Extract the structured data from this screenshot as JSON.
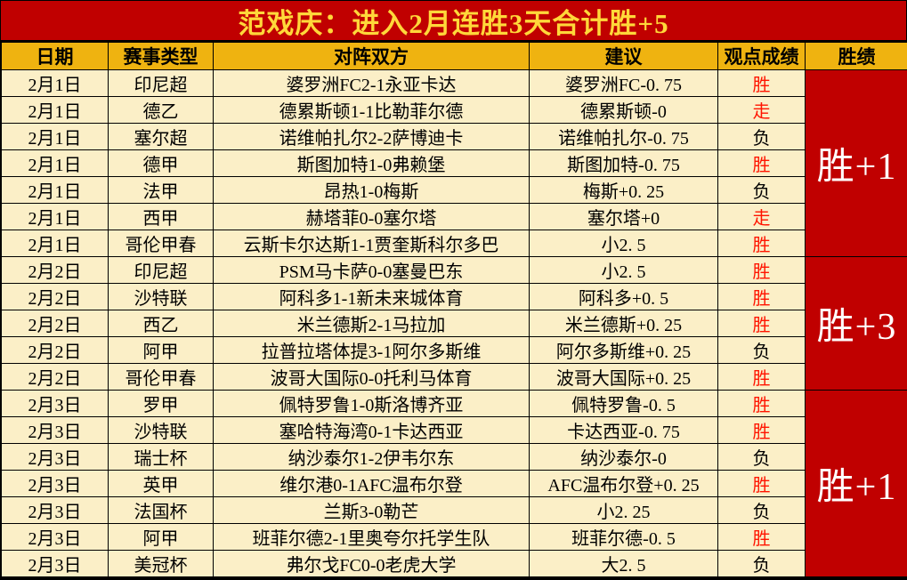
{
  "banner": {
    "title": "范戏庆：进入2月连胜3天合计胜+5"
  },
  "table": {
    "columns": [
      "日期",
      "赛事类型",
      "对阵双方",
      "建议",
      "观点成绩",
      "胜绩"
    ],
    "rows": [
      {
        "date": "2月1日",
        "league": "印尼超",
        "match": "婆罗洲FC2-1永亚卡达",
        "suggestion": "婆罗洲FC-0. 75",
        "result": "胜",
        "result_color": "red"
      },
      {
        "date": "2月1日",
        "league": "德乙",
        "match": "德累斯顿1-1比勒菲尔德",
        "suggestion": "德累斯顿-0",
        "result": "走",
        "result_color": "red"
      },
      {
        "date": "2月1日",
        "league": "塞尔超",
        "match": "诺维帕扎尔2-2萨博迪卡",
        "suggestion": "诺维帕扎尔-0. 75",
        "result": "负",
        "result_color": "black"
      },
      {
        "date": "2月1日",
        "league": "德甲",
        "match": "斯图加特1-0弗赖堡",
        "suggestion": "斯图加特-0. 75",
        "result": "胜",
        "result_color": "red"
      },
      {
        "date": "2月1日",
        "league": "法甲",
        "match": "昂热1-0梅斯",
        "suggestion": "梅斯+0. 25",
        "result": "负",
        "result_color": "black"
      },
      {
        "date": "2月1日",
        "league": "西甲",
        "match": "赫塔菲0-0塞尔塔",
        "suggestion": "塞尔塔+0",
        "result": "走",
        "result_color": "red"
      },
      {
        "date": "2月1日",
        "league": "哥伦甲春",
        "match": "云斯卡尔达斯1-1贾奎斯科尔多巴",
        "suggestion": "小2. 5",
        "result": "胜",
        "result_color": "red"
      },
      {
        "date": "2月2日",
        "league": "印尼超",
        "match": "PSM马卡萨0-0塞曼巴东",
        "suggestion": "小2. 5",
        "result": "胜",
        "result_color": "red"
      },
      {
        "date": "2月2日",
        "league": "沙特联",
        "match": "阿科多1-1新未来城体育",
        "suggestion": "阿科多+0. 5",
        "result": "胜",
        "result_color": "red"
      },
      {
        "date": "2月2日",
        "league": "西乙",
        "match": "米兰德斯2-1马拉加",
        "suggestion": "米兰德斯+0. 25",
        "result": "胜",
        "result_color": "red"
      },
      {
        "date": "2月2日",
        "league": "阿甲",
        "match": "拉普拉塔体提3-1阿尔多斯维",
        "suggestion": "阿尔多斯维+0. 25",
        "result": "负",
        "result_color": "black"
      },
      {
        "date": "2月2日",
        "league": "哥伦甲春",
        "match": "波哥大国际0-0托利马体育",
        "suggestion": "波哥大国际+0. 25",
        "result": "胜",
        "result_color": "red"
      },
      {
        "date": "2月3日",
        "league": "罗甲",
        "match": "佩特罗鲁1-0斯洛博齐亚",
        "suggestion": "佩特罗鲁-0. 5",
        "result": "胜",
        "result_color": "red"
      },
      {
        "date": "2月3日",
        "league": "沙特联",
        "match": "塞哈特海湾0-1卡达西亚",
        "suggestion": "卡达西亚-0. 75",
        "result": "胜",
        "result_color": "red"
      },
      {
        "date": "2月3日",
        "league": "瑞士杯",
        "match": "纳沙泰尔1-2伊韦尔东",
        "suggestion": "纳沙泰尔-0",
        "result": "负",
        "result_color": "black"
      },
      {
        "date": "2月3日",
        "league": "英甲",
        "match": "维尔港0-1AFC温布尔登",
        "suggestion": "AFC温布尔登+0. 25",
        "result": "胜",
        "result_color": "red"
      },
      {
        "date": "2月3日",
        "league": "法国杯",
        "match": "兰斯3-0勒芒",
        "suggestion": "小2. 25",
        "result": "负",
        "result_color": "black"
      },
      {
        "date": "2月3日",
        "league": "阿甲",
        "match": "班菲尔德2-1里奥夸尔托学生队",
        "suggestion": "班菲尔德-0. 5",
        "result": "胜",
        "result_color": "red"
      },
      {
        "date": "2月3日",
        "league": "美冠杯",
        "match": "弗尔戈FC0-0老虎大学",
        "suggestion": "大2. 5",
        "result": "负",
        "result_color": "black"
      }
    ],
    "groups": [
      {
        "label": "胜+1",
        "span": 7
      },
      {
        "label": "胜+3",
        "span": 5
      },
      {
        "label": "胜+1",
        "span": 7
      }
    ]
  },
  "colors": {
    "banner_bg": "#c00000",
    "banner_text": "#ffd83a",
    "header_bg": "#efb310",
    "row_bg": "#fbefc7",
    "group_bg": "#c00000",
    "group_text": "#ffffff",
    "win_text": "#ff1400",
    "loss_text": "#000000",
    "border": "#000000"
  }
}
